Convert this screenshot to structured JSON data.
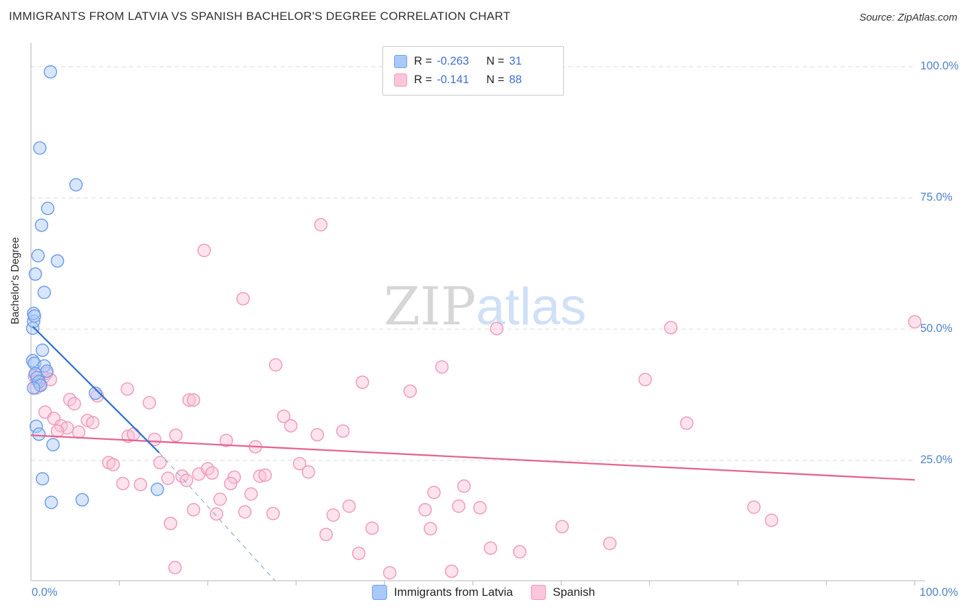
{
  "header": {
    "title": "IMMIGRANTS FROM LATVIA VS SPANISH BACHELOR'S DEGREE CORRELATION CHART",
    "source": "Source: ZipAtlas.com"
  },
  "watermark": {
    "part1": "ZIP",
    "part2": "atlas"
  },
  "legend_box": {
    "rows": [
      {
        "r_label": "R =",
        "r_value": "-0.263",
        "n_label": "N =",
        "n_value": "31"
      },
      {
        "r_label": "R =",
        "r_value": "-0.141",
        "n_label": "N =",
        "n_value": "88"
      }
    ]
  },
  "axes": {
    "y_label": "Bachelor's Degree",
    "x_start_label": "0.0%",
    "x_end_label": "100.0%",
    "y_ticks": [
      {
        "label": "100.0%",
        "value": 100
      },
      {
        "label": "75.0%",
        "value": 75
      },
      {
        "label": "50.0%",
        "value": 50
      },
      {
        "label": "25.0%",
        "value": 25
      }
    ]
  },
  "bottom_legend": {
    "items": [
      {
        "label": "Immigrants from Latvia"
      },
      {
        "label": "Spanish"
      }
    ]
  },
  "chart_data": {
    "type": "scatter",
    "title": "IMMIGRANTS FROM LATVIA VS SPANISH BACHELOR'S DEGREE CORRELATION CHART",
    "xlabel": "",
    "ylabel": "Bachelor's Degree",
    "x_unit": "%",
    "y_unit": "%",
    "xlim": [
      0,
      100
    ],
    "ylim": [
      0,
      105
    ],
    "grid": "horizontal-dashed",
    "gridlines": [
      25,
      50,
      75,
      100
    ],
    "series": [
      {
        "name": "Spanish",
        "R": -0.141,
        "N": 88,
        "fill": "#f9c2d7",
        "stroke": "#ef9ab9",
        "points": [
          [
            0.4,
            41.0
          ],
          [
            0.7,
            40.2
          ],
          [
            1.0,
            39.4
          ],
          [
            1.4,
            40.8
          ],
          [
            0.6,
            38.8
          ],
          [
            1.8,
            41.6
          ],
          [
            2.2,
            40.4
          ],
          [
            1.6,
            34.2
          ],
          [
            2.6,
            33.0
          ],
          [
            4.4,
            36.6
          ],
          [
            4.9,
            35.8
          ],
          [
            3.4,
            31.6
          ],
          [
            4.1,
            31.2
          ],
          [
            3.0,
            30.6
          ],
          [
            5.4,
            30.4
          ],
          [
            6.4,
            32.6
          ],
          [
            7.0,
            32.2
          ],
          [
            7.5,
            37.3
          ],
          [
            8.8,
            24.6
          ],
          [
            9.3,
            24.2
          ],
          [
            10.4,
            20.6
          ],
          [
            11.0,
            29.6
          ],
          [
            11.6,
            30.0
          ],
          [
            10.9,
            38.6
          ],
          [
            12.4,
            20.4
          ],
          [
            13.4,
            36.0
          ],
          [
            14.6,
            24.6
          ],
          [
            15.5,
            21.6
          ],
          [
            16.4,
            29.8
          ],
          [
            17.1,
            22.0
          ],
          [
            15.8,
            13.0
          ],
          [
            16.3,
            4.6
          ],
          [
            17.6,
            21.2
          ],
          [
            18.4,
            15.6
          ],
          [
            19.0,
            22.4
          ],
          [
            19.6,
            65.0
          ],
          [
            20.0,
            23.4
          ],
          [
            20.5,
            22.6
          ],
          [
            17.9,
            36.5
          ],
          [
            18.4,
            36.5
          ],
          [
            21.4,
            17.6
          ],
          [
            21.0,
            14.8
          ],
          [
            22.1,
            28.8
          ],
          [
            23.0,
            21.8
          ],
          [
            22.6,
            20.6
          ],
          [
            24.0,
            55.8
          ],
          [
            24.9,
            18.6
          ],
          [
            24.2,
            15.2
          ],
          [
            25.9,
            22.0
          ],
          [
            25.4,
            27.6
          ],
          [
            27.4,
            14.9
          ],
          [
            27.7,
            43.2
          ],
          [
            28.6,
            33.4
          ],
          [
            29.4,
            31.6
          ],
          [
            26.5,
            22.2
          ],
          [
            30.4,
            24.4
          ],
          [
            31.4,
            22.8
          ],
          [
            32.4,
            29.9
          ],
          [
            32.8,
            69.9
          ],
          [
            33.4,
            10.9
          ],
          [
            34.2,
            14.6
          ],
          [
            35.3,
            30.6
          ],
          [
            36.0,
            16.3
          ],
          [
            37.5,
            39.9
          ],
          [
            37.1,
            7.3
          ],
          [
            38.6,
            12.1
          ],
          [
            40.6,
            3.6
          ],
          [
            42.9,
            38.2
          ],
          [
            44.6,
            15.6
          ],
          [
            45.6,
            18.9
          ],
          [
            46.5,
            42.8
          ],
          [
            47.6,
            3.9
          ],
          [
            48.4,
            16.3
          ],
          [
            49.0,
            20.1
          ],
          [
            52.0,
            8.3
          ],
          [
            52.7,
            50.1
          ],
          [
            55.3,
            7.6
          ],
          [
            45.2,
            12.0
          ],
          [
            50.8,
            16.0
          ],
          [
            60.1,
            12.4
          ],
          [
            65.5,
            9.2
          ],
          [
            69.5,
            40.4
          ],
          [
            72.4,
            50.3
          ],
          [
            74.2,
            32.1
          ],
          [
            81.8,
            16.1
          ],
          [
            83.8,
            13.6
          ],
          [
            100.0,
            51.4
          ],
          [
            14.0,
            29.0
          ]
        ]
      },
      {
        "name": "Immigrants from Latvia",
        "R": -0.263,
        "N": 31,
        "fill": "#a8c8f8",
        "stroke": "#6d9ce8",
        "points": [
          [
            0.2,
            50.2
          ],
          [
            0.3,
            51.5
          ],
          [
            0.3,
            53.0
          ],
          [
            0.4,
            52.5
          ],
          [
            0.5,
            60.5
          ],
          [
            0.8,
            64.0
          ],
          [
            1.0,
            84.5
          ],
          [
            2.2,
            99.0
          ],
          [
            5.1,
            77.5
          ],
          [
            1.9,
            73.0
          ],
          [
            1.2,
            69.8
          ],
          [
            3.0,
            63.0
          ],
          [
            1.5,
            57.0
          ],
          [
            1.3,
            46.0
          ],
          [
            0.2,
            44.0
          ],
          [
            0.4,
            43.5
          ],
          [
            1.5,
            43.0
          ],
          [
            1.8,
            42.0
          ],
          [
            0.5,
            41.5
          ],
          [
            0.7,
            40.8
          ],
          [
            0.9,
            40.0
          ],
          [
            1.1,
            39.3
          ],
          [
            0.3,
            38.8
          ],
          [
            7.3,
            37.8
          ],
          [
            0.6,
            31.5
          ],
          [
            0.9,
            30.0
          ],
          [
            2.5,
            28.0
          ],
          [
            1.3,
            21.5
          ],
          [
            2.3,
            17.0
          ],
          [
            5.8,
            17.5
          ],
          [
            14.3,
            19.5
          ]
        ]
      }
    ],
    "trend_lines": [
      {
        "series": "Spanish",
        "color": "#e7638f",
        "start": [
          0,
          29.8
        ],
        "end": [
          100,
          21.3
        ]
      },
      {
        "series": "Immigrants from Latvia",
        "color": "#2e6fd2",
        "start": [
          0.2,
          50.5
        ],
        "end": [
          14.5,
          26.5
        ],
        "dash_end": [
          27.6,
          2.1
        ],
        "dash_color": "#93a9c9"
      }
    ],
    "legend_position": "bottom-center"
  }
}
